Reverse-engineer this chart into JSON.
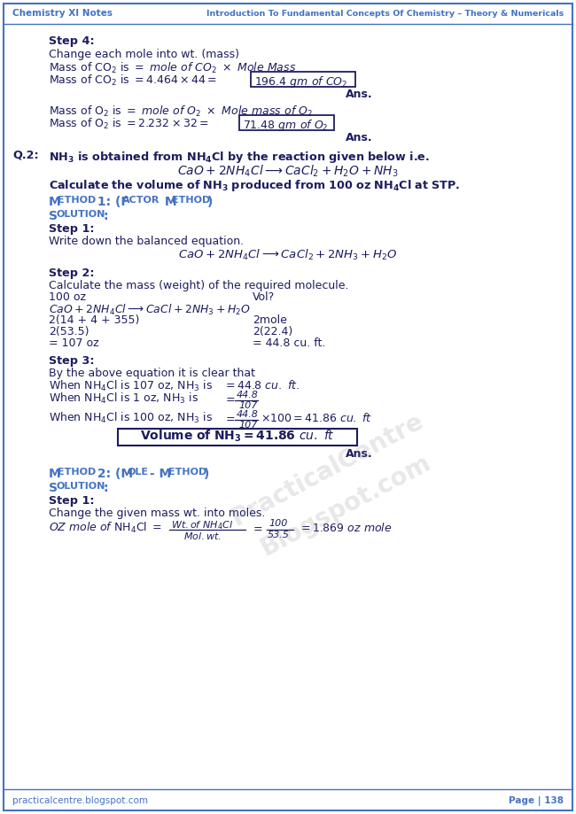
{
  "header_left": "Chemistry XI Notes",
  "header_right": "Introduction To Fundamental Concepts Of Chemistry – Theory & Numericals",
  "footer_left": "practicalcentre.blogspot.com",
  "footer_right": "Page | 138",
  "header_color": "#4472C4",
  "bg_color": "#FFFFFF",
  "border_color": "#4472C4",
  "text_color": "#1C1C5E",
  "watermark_text": "PracticalCentre\nBlogspot\n.com"
}
